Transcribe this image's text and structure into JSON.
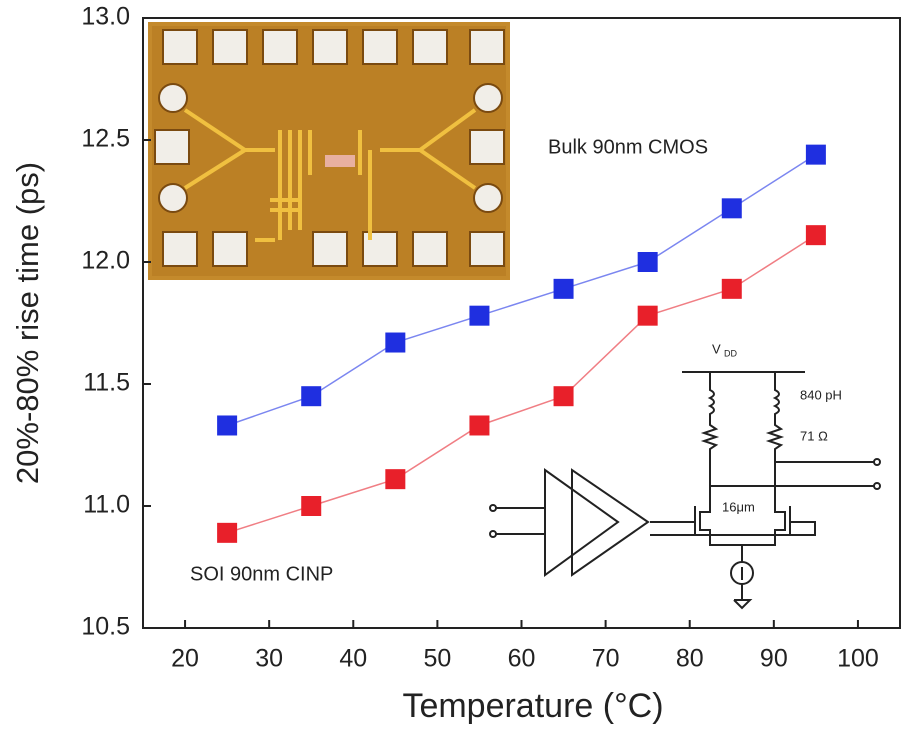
{
  "chart_data": {
    "type": "line",
    "x_label": "Temperature (°C)",
    "y_label": "20%-80% rise time (ps)",
    "x": [
      25,
      35,
      45,
      55,
      65,
      75,
      85,
      95
    ],
    "series": [
      {
        "name": "Bulk 90nm CMOS",
        "color": "#1f2fe0",
        "line_color": "#7b86f0",
        "values": [
          11.33,
          11.45,
          11.67,
          11.78,
          11.89,
          12.0,
          12.22,
          12.44
        ]
      },
      {
        "name": "SOI 90nm CINP",
        "color": "#e8202a",
        "line_color": "#f07e84",
        "values": [
          10.89,
          11.0,
          11.11,
          11.33,
          11.45,
          11.78,
          11.89,
          12.11
        ]
      }
    ],
    "xlim": [
      15,
      105
    ],
    "xticks": [
      20,
      30,
      40,
      50,
      60,
      70,
      80,
      90,
      100
    ],
    "ylim": [
      10.5,
      13.0
    ],
    "yticks": [
      10.5,
      {
        "value": 11.0,
        "label": "11.0"
      },
      11.5,
      {
        "value": 12.0,
        "label": "12.0"
      },
      12.5,
      {
        "value": 13.0,
        "label": "13.0"
      }
    ],
    "grid": false,
    "circuit_labels": {
      "supply": "V",
      "supply_sub": "DD",
      "inductance": "840 pH",
      "resistance": "71 Ω",
      "width": "16μm"
    }
  }
}
